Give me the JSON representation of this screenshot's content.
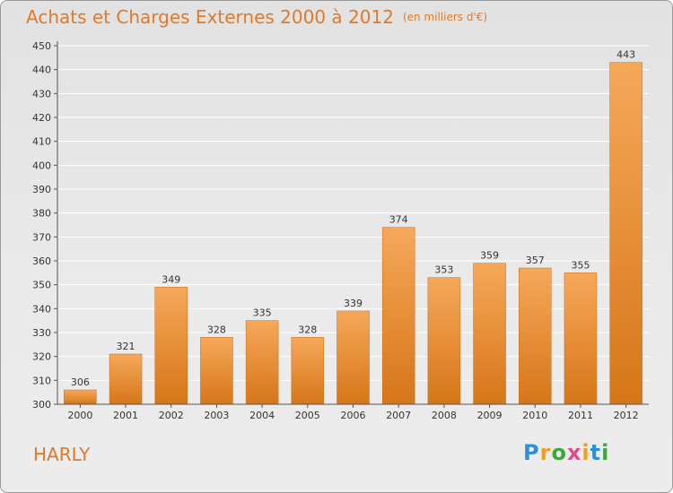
{
  "title": "Achats et Charges Externes 2000 à 2012",
  "unit": "(en milliers d'€)",
  "commune": "HARLY",
  "brand": {
    "letters": [
      "P",
      "r",
      "o",
      "x",
      "i",
      "t",
      "i"
    ],
    "colors": [
      "#2f8fd8",
      "#f0a020",
      "#3aa83a",
      "#e04a8a",
      "#f0a020",
      "#2f8fd8",
      "#3aa83a"
    ]
  },
  "colors": {
    "bar_light": "#f6a85a",
    "bar_dark": "#d67618",
    "title": "#e07a2a",
    "grid": "#ffffff"
  },
  "chart_data": {
    "type": "bar",
    "categories": [
      "2000",
      "2001",
      "2002",
      "2003",
      "2004",
      "2005",
      "2006",
      "2007",
      "2008",
      "2009",
      "2010",
      "2011",
      "2012"
    ],
    "values": [
      306,
      321,
      349,
      328,
      335,
      328,
      339,
      374,
      353,
      359,
      357,
      355,
      443
    ],
    "ylim": [
      300,
      450
    ],
    "yticks": [
      300,
      310,
      320,
      330,
      340,
      350,
      360,
      370,
      380,
      390,
      400,
      410,
      420,
      430,
      440,
      450
    ],
    "grid": true
  }
}
